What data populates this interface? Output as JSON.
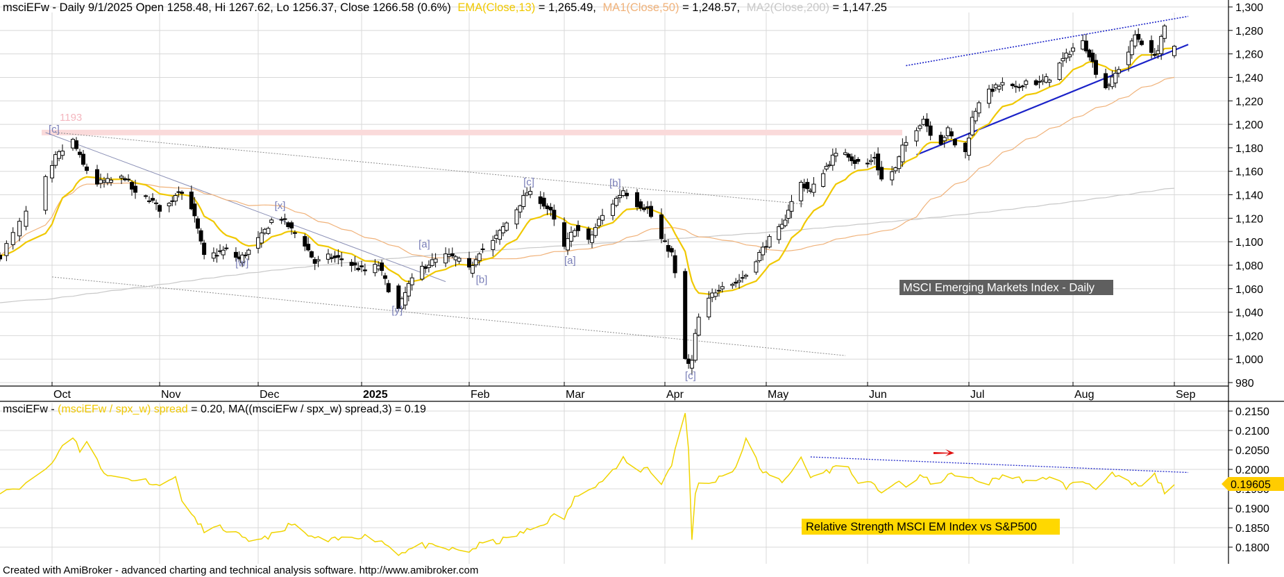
{
  "colors": {
    "background": "#ffffff",
    "grid": "#d8d8d8",
    "candle": "#000000",
    "ema": "#f0c800",
    "ma50": "#f0b27a",
    "ma200": "#c8c8c8",
    "wave_label": "#7a7fb8",
    "trendline": "#1a22c8",
    "resistance_band": "#fadada",
    "resistance_text": "#f4b6be",
    "rs_line": "#f0d400",
    "annotation_bg": "#5f5f5f",
    "rs_annotation_bg": "#ffd800",
    "last_value_bg": "#ffcc00",
    "red_arrow": "#e01010"
  },
  "price_header": {
    "symbol_info": "msciEFw - Daily 9/1/2025 Open 1258.48, Hi 1267.62, Lo 1256.37, Close 1266.58 (0.6%)",
    "ema_label": "EMA(Close,13)",
    "ema_value": " = 1,265.49,",
    "ma1_label": "MA1(Close,50)",
    "ma1_value": " = 1,248.57,",
    "ma2_label": "MA2(Close,200)",
    "ma2_value": " = 1,147.25"
  },
  "rs_header": {
    "prefix": "msciEFw - ",
    "spread_label": "(msciEFw / spx_w) spread",
    "spread_value": " = 0.20, MA((msciEFw / spx_w) spread,3) = 0.19"
  },
  "price_annotation": "MSCI Emerging Markets Index - Daily",
  "rs_annotation": "Relative Strength MSCI EM Index vs S&P500",
  "resistance_label": "1193",
  "rs_last_value": "0.19605",
  "footer": "Created with AmiBroker - advanced charting and technical analysis software. http://www.amibroker.com",
  "wave_labels": [
    "[c]",
    "[x]",
    "[w]",
    "[y]",
    "[a]",
    "[b]",
    "[c]",
    "[a]",
    "[b]",
    "[c]"
  ],
  "chart_data": [
    {
      "type": "candlestick",
      "title": "MSCI Emerging Markets Index - Daily",
      "x_axis": {
        "ticks": [
          "Oct",
          "Nov",
          "Dec",
          "2025",
          "Feb",
          "Mar",
          "Apr",
          "May",
          "Jun",
          "Jul",
          "Aug",
          "Sep"
        ],
        "range": [
          "2024-09-23",
          "2025-09-05"
        ]
      },
      "y_axis": {
        "range": [
          970,
          1305
        ],
        "ticks": [
          "1,300",
          "1,280",
          "1,260",
          "1,240",
          "1,220",
          "1,200",
          "1,180",
          "1,160",
          "1,140",
          "1,120",
          "1,100",
          "1,080",
          "1,060",
          "1,040",
          "1,020",
          "1,000",
          "980"
        ],
        "tick_values": [
          1300,
          1280,
          1260,
          1240,
          1220,
          1200,
          1180,
          1160,
          1140,
          1120,
          1100,
          1080,
          1060,
          1040,
          1020,
          1000,
          980
        ]
      },
      "grid": true,
      "resistance_level": 1193,
      "close_anchors": [
        [
          "2024-09-23",
          1088
        ],
        [
          "2024-09-27",
          1125
        ],
        [
          "2024-10-02",
          1172
        ],
        [
          "2024-10-07",
          1186
        ],
        [
          "2024-10-10",
          1165
        ],
        [
          "2024-10-14",
          1150
        ],
        [
          "2024-10-18",
          1152
        ],
        [
          "2024-10-22",
          1155
        ],
        [
          "2024-10-25",
          1140
        ],
        [
          "2024-10-29",
          1137
        ],
        [
          "2024-11-01",
          1128
        ],
        [
          "2024-11-04",
          1132
        ],
        [
          "2024-11-07",
          1145
        ],
        [
          "2024-11-11",
          1130
        ],
        [
          "2024-11-13",
          1110
        ],
        [
          "2024-11-15",
          1087
        ],
        [
          "2024-11-19",
          1090
        ],
        [
          "2024-11-22",
          1093
        ],
        [
          "2024-11-26",
          1085
        ],
        [
          "2024-11-29",
          1092
        ],
        [
          "2024-12-03",
          1105
        ],
        [
          "2024-12-06",
          1118
        ],
        [
          "2024-12-09",
          1120
        ],
        [
          "2024-12-12",
          1110
        ],
        [
          "2024-12-16",
          1098
        ],
        [
          "2024-12-19",
          1082
        ],
        [
          "2024-12-23",
          1087
        ],
        [
          "2024-12-27",
          1085
        ],
        [
          "2024-12-31",
          1079
        ],
        [
          "2025-01-03",
          1075
        ],
        [
          "2025-01-07",
          1080
        ],
        [
          "2025-01-10",
          1060
        ],
        [
          "2025-01-13",
          1042
        ],
        [
          "2025-01-16",
          1063
        ],
        [
          "2025-01-20",
          1078
        ],
        [
          "2025-01-23",
          1083
        ],
        [
          "2025-01-27",
          1088
        ],
        [
          "2025-01-30",
          1086
        ],
        [
          "2025-02-03",
          1076
        ],
        [
          "2025-02-06",
          1092
        ],
        [
          "2025-02-10",
          1100
        ],
        [
          "2025-02-13",
          1112
        ],
        [
          "2025-02-17",
          1128
        ],
        [
          "2025-02-20",
          1142
        ],
        [
          "2025-02-24",
          1135
        ],
        [
          "2025-02-27",
          1125
        ],
        [
          "2025-03-03",
          1095
        ],
        [
          "2025-03-06",
          1112
        ],
        [
          "2025-03-10",
          1100
        ],
        [
          "2025-03-13",
          1118
        ],
        [
          "2025-03-17",
          1133
        ],
        [
          "2025-03-20",
          1144
        ],
        [
          "2025-03-24",
          1132
        ],
        [
          "2025-03-27",
          1128
        ],
        [
          "2025-03-31",
          1102
        ],
        [
          "2025-04-03",
          1090
        ],
        [
          "2025-04-04",
          1072
        ],
        [
          "2025-04-07",
          1000
        ],
        [
          "2025-04-08",
          995
        ],
        [
          "2025-04-09",
          998
        ],
        [
          "2025-04-10",
          1020
        ],
        [
          "2025-04-11",
          1035
        ],
        [
          "2025-04-15",
          1055
        ],
        [
          "2025-04-18",
          1064
        ],
        [
          "2025-04-22",
          1065
        ],
        [
          "2025-04-25",
          1072
        ],
        [
          "2025-04-29",
          1090
        ],
        [
          "2025-05-02",
          1102
        ],
        [
          "2025-05-06",
          1113
        ],
        [
          "2025-05-08",
          1128
        ],
        [
          "2025-05-12",
          1150
        ],
        [
          "2025-05-15",
          1143
        ],
        [
          "2025-05-19",
          1160
        ],
        [
          "2025-05-22",
          1172
        ],
        [
          "2025-05-26",
          1177
        ],
        [
          "2025-05-29",
          1168
        ],
        [
          "2025-06-02",
          1166
        ],
        [
          "2025-06-04",
          1172
        ],
        [
          "2025-06-06",
          1153
        ],
        [
          "2025-06-10",
          1162
        ],
        [
          "2025-06-12",
          1180
        ],
        [
          "2025-06-16",
          1197
        ],
        [
          "2025-06-18",
          1205
        ],
        [
          "2025-06-20",
          1193
        ],
        [
          "2025-06-23",
          1185
        ],
        [
          "2025-06-25",
          1195
        ],
        [
          "2025-06-27",
          1183
        ],
        [
          "2025-06-30",
          1176
        ],
        [
          "2025-07-02",
          1205
        ],
        [
          "2025-07-04",
          1220
        ],
        [
          "2025-07-08",
          1230
        ],
        [
          "2025-07-11",
          1234
        ],
        [
          "2025-07-15",
          1230
        ],
        [
          "2025-07-18",
          1237
        ],
        [
          "2025-07-22",
          1235
        ],
        [
          "2025-07-25",
          1240
        ],
        [
          "2025-07-29",
          1255
        ],
        [
          "2025-08-01",
          1265
        ],
        [
          "2025-08-04",
          1270
        ],
        [
          "2025-08-06",
          1260
        ],
        [
          "2025-08-08",
          1245
        ],
        [
          "2025-08-11",
          1232
        ],
        [
          "2025-08-13",
          1238
        ],
        [
          "2025-08-15",
          1248
        ],
        [
          "2025-08-18",
          1262
        ],
        [
          "2025-08-20",
          1276
        ],
        [
          "2025-08-22",
          1270
        ],
        [
          "2025-08-25",
          1259
        ],
        [
          "2025-08-27",
          1263
        ],
        [
          "2025-08-29",
          1282
        ],
        [
          "2025-09-01",
          1266.58
        ]
      ],
      "last_bar": {
        "date": "2025-09-01",
        "open": 1258.48,
        "high": 1267.62,
        "low": 1256.37,
        "close": 1266.58
      },
      "indicators": {
        "ema13": {
          "label": "EMA(Close,13)",
          "last": 1265.49
        },
        "ma50": {
          "label": "MA1(Close,50)",
          "last": 1248.57
        },
        "ma200": {
          "label": "MA2(Close,200)",
          "last": 1147.25
        }
      },
      "trendlines": [
        {
          "style": "blue-solid",
          "from": [
            "2025-06-16",
            1174
          ],
          "to": [
            "2025-09-05",
            1268
          ]
        },
        {
          "style": "blue-dotted",
          "from": [
            "2025-06-13",
            1250
          ],
          "to": [
            "2025-09-05",
            1292
          ]
        },
        {
          "style": "gray-solid",
          "from": [
            "2024-09-30",
            1193
          ],
          "to": [
            "2025-01-27",
            1066
          ]
        },
        {
          "style": "gray-dotted",
          "from": [
            "2024-10-02",
            1193
          ],
          "to": [
            "2025-05-13",
            1132
          ]
        },
        {
          "style": "gray-dotted",
          "from": [
            "2024-10-01",
            1070
          ],
          "to": [
            "2025-05-26",
            1003
          ]
        }
      ],
      "wave_label_points": [
        [
          "2024-10-02",
          1193
        ],
        [
          "2024-12-09",
          1128
        ],
        [
          "2024-11-27",
          1079
        ],
        [
          "2025-01-13",
          1039
        ],
        [
          "2025-01-21",
          1095
        ],
        [
          "2025-02-07",
          1065
        ],
        [
          "2025-02-21",
          1148
        ],
        [
          "2025-03-05",
          1081
        ],
        [
          "2025-03-18",
          1147
        ],
        [
          "2025-04-09",
          983
        ]
      ]
    },
    {
      "type": "line",
      "title": "Relative Strength MSCI EM Index vs S&P500",
      "series": [
        {
          "name": "(msciEFw / spx_w) spread",
          "last": 0.2
        }
      ],
      "ma3_last": 0.19,
      "last_value": 0.19605,
      "y_axis": {
        "range": [
          0.1775,
          0.2155
        ],
        "ticks": [
          "0.2150",
          "0.2100",
          "0.2050",
          "0.2000",
          "0.1950",
          "0.1900",
          "0.1850",
          "0.1800"
        ],
        "tick_values": [
          0.215,
          0.21,
          0.205,
          0.2,
          0.195,
          0.19,
          0.185,
          0.18
        ]
      },
      "anchors": [
        [
          "2024-09-23",
          0.1945
        ],
        [
          "2024-09-27",
          0.196
        ],
        [
          "2024-10-02",
          0.203
        ],
        [
          "2024-10-04",
          0.2065
        ],
        [
          "2024-10-07",
          0.2085
        ],
        [
          "2024-10-09",
          0.205
        ],
        [
          "2024-10-11",
          0.207
        ],
        [
          "2024-10-15",
          0.2005
        ],
        [
          "2024-10-18",
          0.198
        ],
        [
          "2024-10-24",
          0.1975
        ],
        [
          "2024-10-29",
          0.197
        ],
        [
          "2024-11-01",
          0.1955
        ],
        [
          "2024-11-04",
          0.198
        ],
        [
          "2024-11-06",
          0.1975
        ],
        [
          "2024-11-08",
          0.1925
        ],
        [
          "2024-11-12",
          0.187
        ],
        [
          "2024-11-15",
          0.1845
        ],
        [
          "2024-11-20",
          0.185
        ],
        [
          "2024-11-25",
          0.1835
        ],
        [
          "2024-11-29",
          0.181
        ],
        [
          "2024-12-03",
          0.1825
        ],
        [
          "2024-12-09",
          0.1835
        ],
        [
          "2024-12-12",
          0.1865
        ],
        [
          "2024-12-16",
          0.183
        ],
        [
          "2024-12-23",
          0.1815
        ],
        [
          "2025-01-02",
          0.183
        ],
        [
          "2025-01-08",
          0.1815
        ],
        [
          "2025-01-13",
          0.1785
        ],
        [
          "2025-01-20",
          0.1805
        ],
        [
          "2025-01-27",
          0.1795
        ],
        [
          "2025-02-03",
          0.179
        ],
        [
          "2025-02-07",
          0.181
        ],
        [
          "2025-02-12",
          0.1815
        ],
        [
          "2025-02-18",
          0.1835
        ],
        [
          "2025-02-24",
          0.1855
        ],
        [
          "2025-02-28",
          0.188
        ],
        [
          "2025-03-03",
          0.1875
        ],
        [
          "2025-03-06",
          0.1925
        ],
        [
          "2025-03-10",
          0.1955
        ],
        [
          "2025-03-13",
          0.1965
        ],
        [
          "2025-03-17",
          0.1995
        ],
        [
          "2025-03-20",
          0.2025
        ],
        [
          "2025-03-24",
          0.1995
        ],
        [
          "2025-03-27",
          0.2005
        ],
        [
          "2025-03-31",
          0.1965
        ],
        [
          "2025-04-03",
          0.201
        ],
        [
          "2025-04-04",
          0.2055
        ],
        [
          "2025-04-07",
          0.2145
        ],
        [
          "2025-04-08",
          0.205
        ],
        [
          "2025-04-09",
          0.1825
        ],
        [
          "2025-04-10",
          0.1935
        ],
        [
          "2025-04-11",
          0.196
        ],
        [
          "2025-04-15",
          0.1965
        ],
        [
          "2025-04-18",
          0.1985
        ],
        [
          "2025-04-22",
          0.2005
        ],
        [
          "2025-04-25",
          0.208
        ],
        [
          "2025-04-29",
          0.2005
        ],
        [
          "2025-05-02",
          0.198
        ],
        [
          "2025-05-06",
          0.197
        ],
        [
          "2025-05-12",
          0.2025
        ],
        [
          "2025-05-15",
          0.198
        ],
        [
          "2025-05-20",
          0.1995
        ],
        [
          "2025-05-26",
          0.2015
        ],
        [
          "2025-05-29",
          0.1975
        ],
        [
          "2025-06-03",
          0.196
        ],
        [
          "2025-06-06",
          0.1945
        ],
        [
          "2025-06-10",
          0.1965
        ],
        [
          "2025-06-13",
          0.1955
        ],
        [
          "2025-06-17",
          0.1985
        ],
        [
          "2025-06-20",
          0.1965
        ],
        [
          "2025-06-24",
          0.1975
        ],
        [
          "2025-06-27",
          0.199
        ],
        [
          "2025-07-01",
          0.1975
        ],
        [
          "2025-07-07",
          0.1965
        ],
        [
          "2025-07-11",
          0.1985
        ],
        [
          "2025-07-16",
          0.1975
        ],
        [
          "2025-07-21",
          0.1965
        ],
        [
          "2025-07-25",
          0.1985
        ],
        [
          "2025-07-30",
          0.1955
        ],
        [
          "2025-08-04",
          0.197
        ],
        [
          "2025-08-08",
          0.1955
        ],
        [
          "2025-08-13",
          0.1985
        ],
        [
          "2025-08-18",
          0.1965
        ],
        [
          "2025-08-22",
          0.1955
        ],
        [
          "2025-08-26",
          0.1985
        ],
        [
          "2025-08-29",
          0.1945
        ],
        [
          "2025-09-01",
          0.19605
        ]
      ],
      "trendline": {
        "style": "blue-dotted",
        "from": [
          "2025-05-15",
          0.2032
        ],
        "to": [
          "2025-09-05",
          0.1992
        ]
      }
    }
  ]
}
